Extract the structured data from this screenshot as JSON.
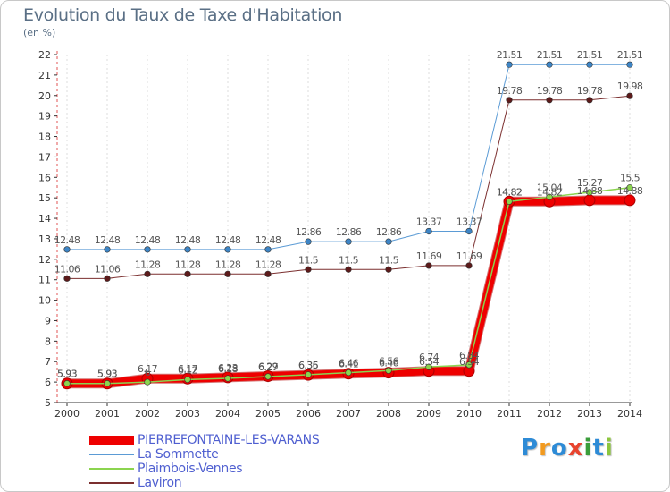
{
  "header": {
    "title": "Evolution du Taux de Taxe d'Habitation",
    "subtitle": "(en %)"
  },
  "logo": {
    "text": "Proxiti",
    "letters": [
      {
        "ch": "P",
        "color": "#2e8bd6"
      },
      {
        "ch": "r",
        "color": "#f29a1f"
      },
      {
        "ch": "o",
        "color": "#2e8bd6"
      },
      {
        "ch": "x",
        "color": "#e8442e"
      },
      {
        "ch": "i",
        "color": "#3a9d3a"
      },
      {
        "ch": "t",
        "color": "#2e8bd6"
      },
      {
        "ch": "i",
        "color": "#8cc63e"
      }
    ]
  },
  "chart_data": {
    "type": "line",
    "title": "Evolution du Taux de Taxe d'Habitation",
    "ylabel": "(en %)",
    "xlabel": "",
    "x": [
      2000,
      2001,
      2002,
      2003,
      2004,
      2005,
      2006,
      2007,
      2008,
      2009,
      2010,
      2011,
      2012,
      2013,
      2014
    ],
    "ylim": [
      5,
      22
    ],
    "yticks": [
      5,
      6,
      7,
      8,
      9,
      10,
      11,
      12,
      13,
      14,
      15,
      16,
      17,
      18,
      19,
      20,
      21,
      22
    ],
    "grid": "vertical dashed",
    "legend_position": "bottom-left",
    "series": [
      {
        "name": "PIERREFONTAINE-LES-VARANS",
        "color": "#ee0000",
        "marker_color": "#ee0000",
        "width": 9,
        "values": [
          5.93,
          5.93,
          6.17,
          6.17,
          6.23,
          6.29,
          6.35,
          6.41,
          6.46,
          6.54,
          6.54,
          14.82,
          14.82,
          14.88,
          14.88
        ],
        "labels": [
          "5.93",
          "5.93",
          "6.17",
          "6.17",
          "6.23",
          "6.29",
          "6.35",
          "6.41",
          "6.46",
          "6.54",
          "6.54",
          "14.82",
          "14.82",
          "14.88",
          "14.88"
        ]
      },
      {
        "name": "La Sommette",
        "color": "#5b9bd5",
        "marker_color": "#3d85c6",
        "width": 1,
        "values": [
          12.48,
          12.48,
          12.48,
          12.48,
          12.48,
          12.48,
          12.86,
          12.86,
          12.86,
          13.37,
          13.37,
          21.51,
          21.51,
          21.51,
          21.51
        ],
        "labels": [
          "12.48",
          "12.48",
          "12.48",
          "12.48",
          "12.48",
          "12.48",
          "12.86",
          "12.86",
          "12.86",
          "13.37",
          "13.37",
          "21.51",
          "21.51",
          "21.51",
          "21.51"
        ]
      },
      {
        "name": "Plaimbois-Vennes",
        "color": "#8bd44f",
        "marker_color": "#8bd44f",
        "width": 1.5,
        "values": [
          5.93,
          5.93,
          6,
          6.12,
          6.18,
          6.27,
          6.36,
          6.46,
          6.56,
          6.74,
          6.84,
          14.82,
          15.04,
          15.27,
          15.5
        ],
        "labels": [
          "5.93",
          "5.93",
          "6",
          "6.12",
          "6.18",
          "6.27",
          "6.36",
          "6.46",
          "6.56",
          "6.74",
          "6.84",
          "14.82",
          "15.04",
          "15.27",
          "15.5"
        ]
      },
      {
        "name": "Laviron",
        "color": "#7b2f2f",
        "marker_color": "#5c1a1a",
        "width": 1,
        "values": [
          11.06,
          11.06,
          11.28,
          11.28,
          11.28,
          11.28,
          11.5,
          11.5,
          11.5,
          11.69,
          11.69,
          19.78,
          19.78,
          19.78,
          19.98
        ],
        "labels": [
          "11.06",
          "11.06",
          "11.28",
          "11.28",
          "11.28",
          "11.28",
          "11.5",
          "11.5",
          "11.5",
          "11.69",
          "11.69",
          "19.78",
          "19.78",
          "19.78",
          "19.98"
        ]
      }
    ]
  }
}
